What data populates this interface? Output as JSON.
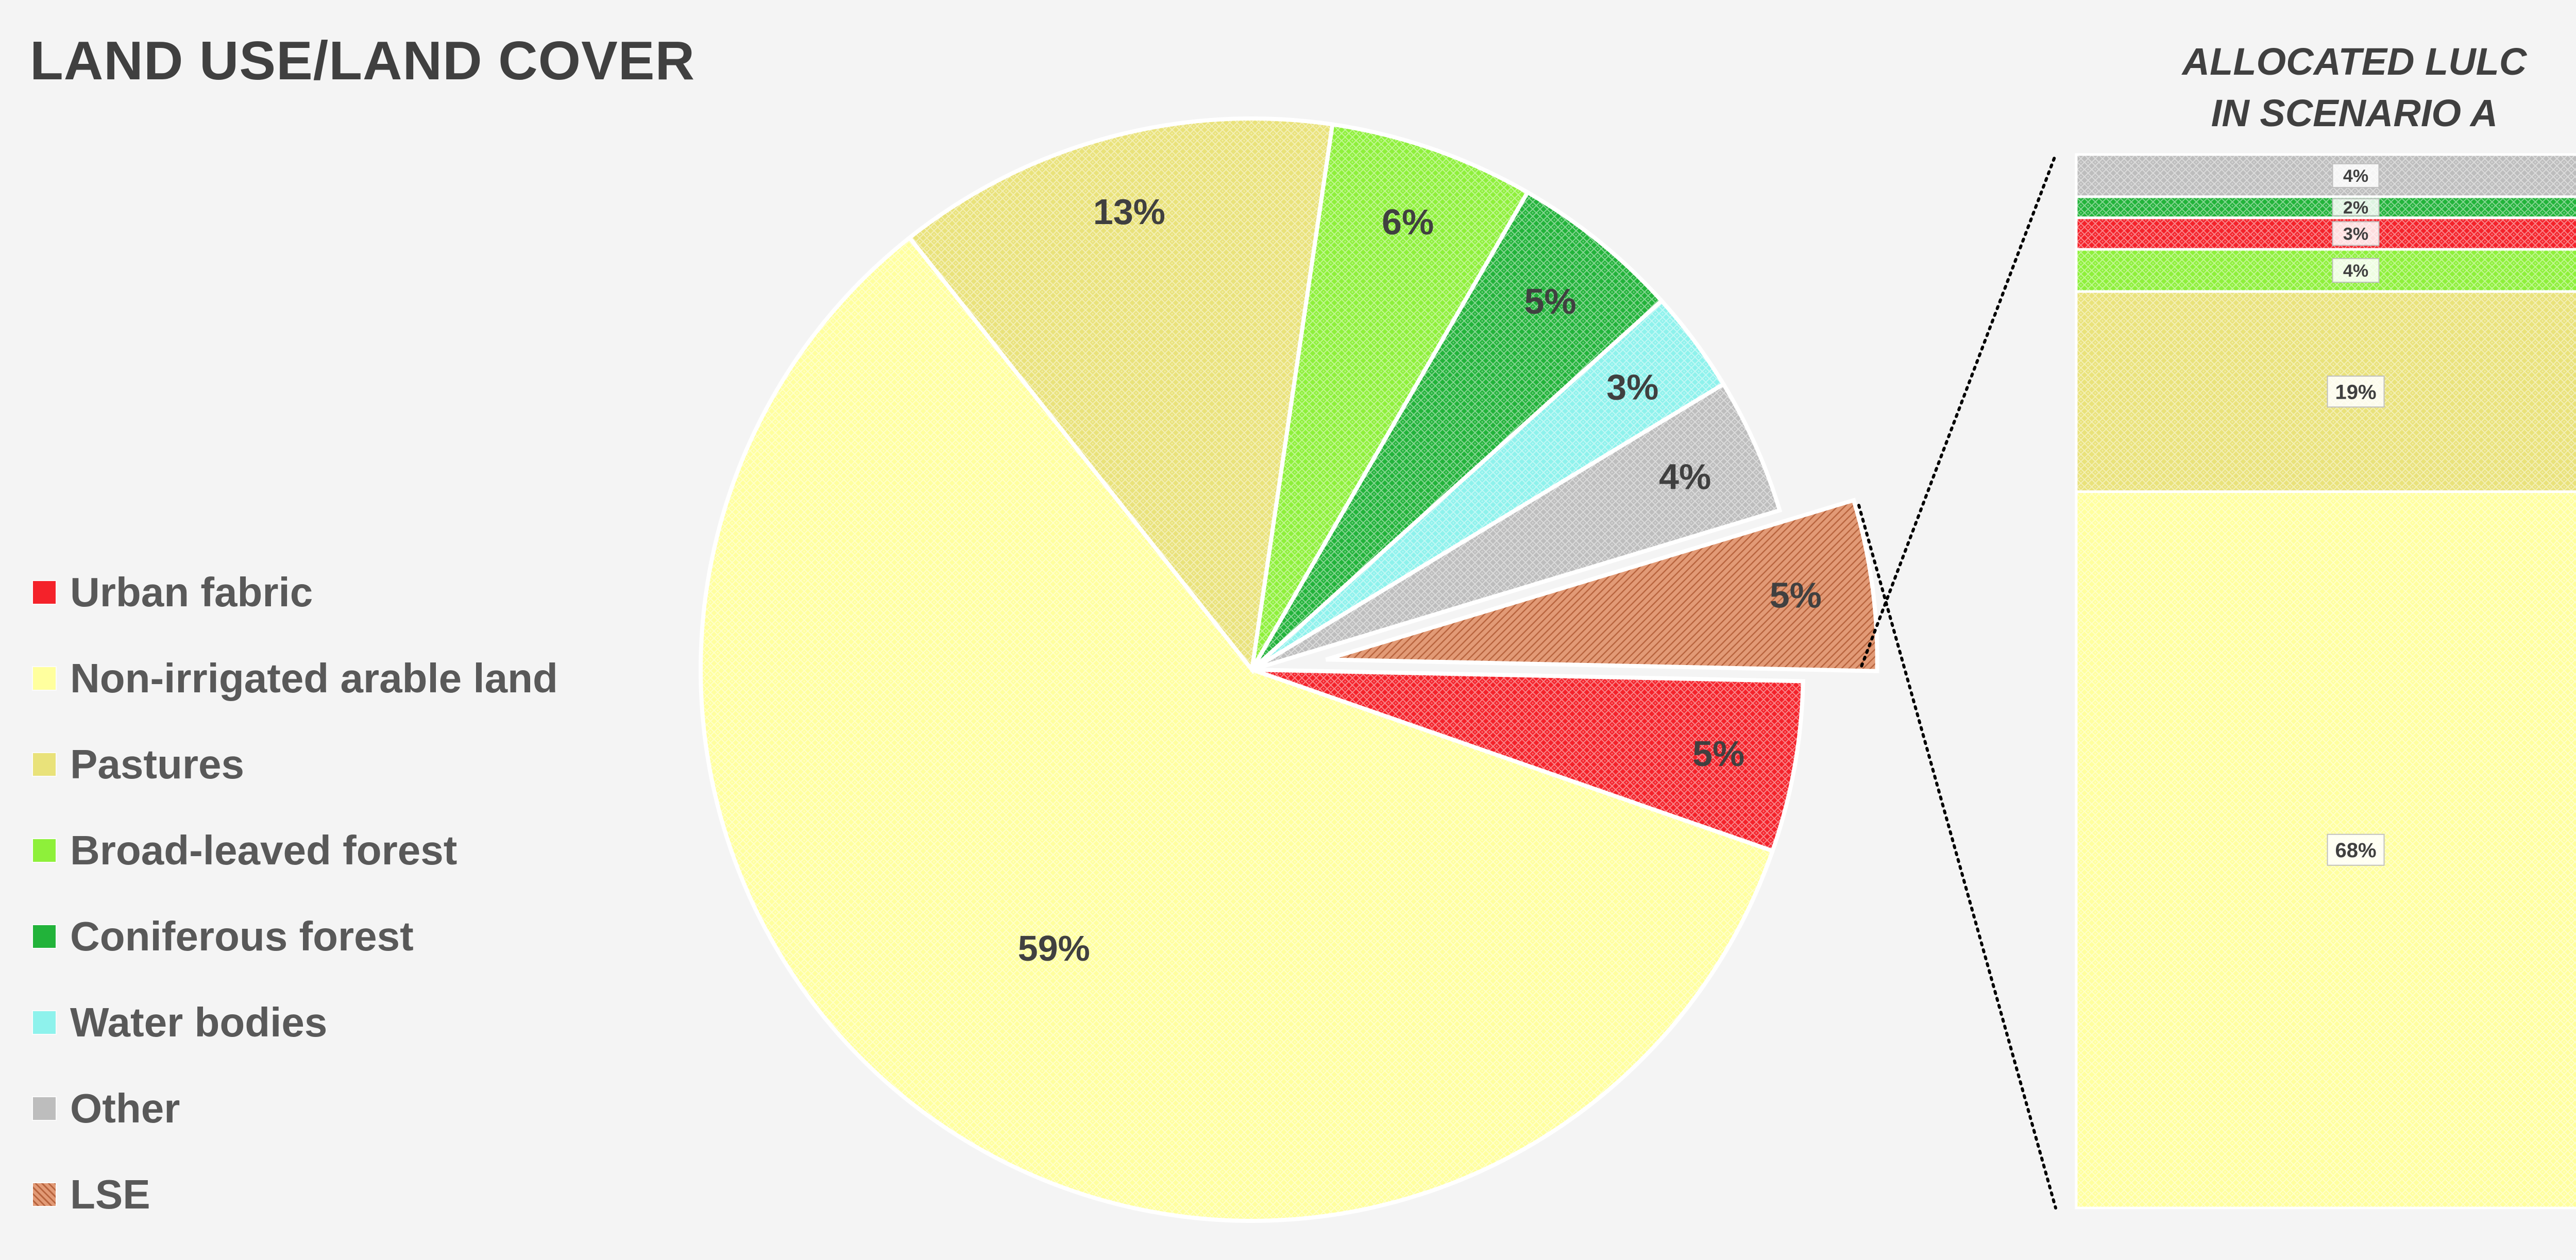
{
  "title": "LAND USE/LAND COVER",
  "colors": {
    "urban": "#f4222a",
    "arable": "#ffff9e",
    "pastures": "#e9e27a",
    "broadleaved": "#8ef03a",
    "coniferous": "#22b33a",
    "water": "#8ef2ec",
    "other": "#bdbdbd",
    "lse": "#e29a76"
  },
  "legend": [
    {
      "label": "Urban fabric",
      "key": "urban"
    },
    {
      "label": "Non-irrigated arable land",
      "key": "arable"
    },
    {
      "label": "Pastures",
      "key": "pastures"
    },
    {
      "label": "Broad-leaved forest",
      "key": "broadleaved"
    },
    {
      "label": "Coniferous forest",
      "key": "coniferous"
    },
    {
      "label": "Water bodies",
      "key": "water"
    },
    {
      "label": "Other",
      "key": "other"
    },
    {
      "label": "LSE",
      "key": "lse"
    }
  ],
  "chart_data": [
    {
      "type": "pie",
      "title": "LAND USE/LAND COVER",
      "series": [
        {
          "name": "Urban fabric",
          "key": "urban",
          "value": 5,
          "label": "5%"
        },
        {
          "name": "Non-irrigated arable land",
          "key": "arable",
          "value": 59,
          "label": "59%"
        },
        {
          "name": "Pastures",
          "key": "pastures",
          "value": 13,
          "label": "13%"
        },
        {
          "name": "Broad-leaved forest",
          "key": "broadleaved",
          "value": 6,
          "label": "6%"
        },
        {
          "name": "Coniferous forest",
          "key": "coniferous",
          "value": 5,
          "label": "5%"
        },
        {
          "name": "Water bodies",
          "key": "water",
          "value": 3,
          "label": "3%"
        },
        {
          "name": "Other",
          "key": "other",
          "value": 4,
          "label": "4%"
        },
        {
          "name": "LSE",
          "key": "lse",
          "value": 5,
          "label": "5%",
          "exploded": true
        }
      ]
    },
    {
      "type": "bar",
      "stacked": true,
      "title": "ALLOCATED LULC IN SCENARIO A",
      "series": [
        {
          "name": "Non-irrigated arable land",
          "key": "arable",
          "value": 68,
          "label": "68%"
        },
        {
          "name": "Pastures",
          "key": "pastures",
          "value": 19,
          "label": "19%"
        },
        {
          "name": "Broad-leaved forest",
          "key": "broadleaved",
          "value": 4,
          "label": "4%"
        },
        {
          "name": "Urban fabric",
          "key": "urban",
          "value": 3,
          "label": "3%"
        },
        {
          "name": "Coniferous forest",
          "key": "coniferous",
          "value": 2,
          "label": "2%"
        },
        {
          "name": "Other",
          "key": "other",
          "value": 4,
          "label": "4%"
        }
      ]
    }
  ],
  "stack_title_lines": [
    "ALLOCATED LULC",
    "IN SCENARIO A"
  ]
}
